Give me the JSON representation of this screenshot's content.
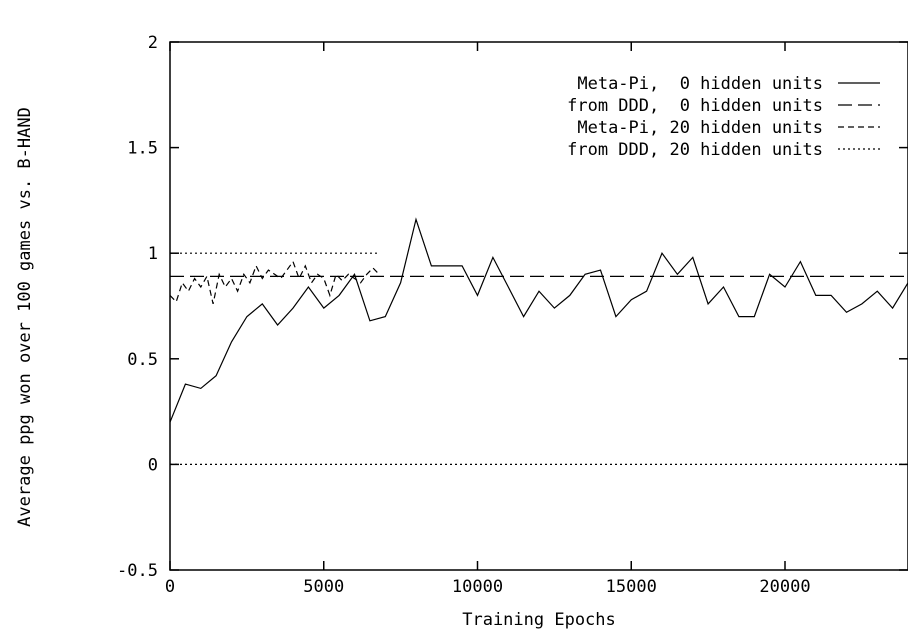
{
  "chart_data": {
    "type": "line",
    "title": "",
    "xlabel": "Training Epochs",
    "ylabel": "Average ppg won over 100 games vs. B-HAND",
    "xlim": [
      0,
      24000
    ],
    "ylim": [
      -0.5,
      2
    ],
    "xticks": [
      {
        "value": 0,
        "label": "0"
      },
      {
        "value": 5000,
        "label": "5000"
      },
      {
        "value": 10000,
        "label": "10000"
      },
      {
        "value": 15000,
        "label": "15000"
      },
      {
        "value": 20000,
        "label": "20000"
      }
    ],
    "yticks": [
      {
        "value": -0.5,
        "label": "-0.5"
      },
      {
        "value": 0,
        "label": "0"
      },
      {
        "value": 0.5,
        "label": "0.5"
      },
      {
        "value": 1,
        "label": "1"
      },
      {
        "value": 1.5,
        "label": "1.5"
      },
      {
        "value": 2,
        "label": "2"
      }
    ],
    "grid": false,
    "legend_position": "top-right",
    "series": [
      {
        "name": "Meta-Pi,  0 hidden units",
        "style": "solid",
        "x": [
          0,
          500,
          1000,
          1500,
          2000,
          2500,
          3000,
          3500,
          4000,
          4500,
          5000,
          5500,
          6000,
          6500,
          7000,
          7500,
          8000,
          8500,
          9000,
          9500,
          10000,
          10500,
          11000,
          11500,
          12000,
          12500,
          13000,
          13500,
          14000,
          14500,
          15000,
          15500,
          16000,
          16500,
          17000,
          17500,
          18000,
          18500,
          19000,
          19500,
          20000,
          20500,
          21000,
          21500,
          22000,
          22500,
          23000,
          23500,
          24000
        ],
        "y": [
          0.2,
          0.38,
          0.36,
          0.42,
          0.58,
          0.7,
          0.76,
          0.66,
          0.74,
          0.84,
          0.74,
          0.8,
          0.9,
          0.68,
          0.7,
          0.86,
          1.16,
          0.94,
          0.94,
          0.94,
          0.8,
          0.98,
          0.84,
          0.7,
          0.82,
          0.74,
          0.8,
          0.9,
          0.92,
          0.7,
          0.78,
          0.82,
          1.0,
          0.9,
          0.98,
          0.76,
          0.84,
          0.7,
          0.7,
          0.9,
          0.84,
          0.96,
          0.8,
          0.8,
          0.72,
          0.76,
          0.82,
          0.74,
          0.86
        ]
      },
      {
        "name": "from DDD,  0 hidden units",
        "style": "dashed",
        "x": [
          0,
          24000
        ],
        "y": [
          0.89,
          0.89
        ]
      },
      {
        "name": "Meta-Pi, 20 hidden units",
        "style": "short-dashed",
        "x": [
          0,
          200,
          400,
          600,
          800,
          1000,
          1200,
          1400,
          1600,
          1800,
          2000,
          2200,
          2400,
          2600,
          2800,
          3000,
          3200,
          3400,
          3600,
          3800,
          4000,
          4200,
          4400,
          4600,
          4800,
          5000,
          5200,
          5400,
          5600,
          5800,
          6000,
          6200,
          6400,
          6600,
          6800
        ],
        "y": [
          0.8,
          0.77,
          0.86,
          0.82,
          0.88,
          0.84,
          0.89,
          0.76,
          0.9,
          0.84,
          0.88,
          0.82,
          0.9,
          0.86,
          0.94,
          0.88,
          0.92,
          0.9,
          0.88,
          0.92,
          0.96,
          0.88,
          0.94,
          0.86,
          0.9,
          0.88,
          0.8,
          0.9,
          0.87,
          0.9,
          0.88,
          0.86,
          0.9,
          0.93,
          0.9
        ]
      },
      {
        "name": "from DDD, 20 hidden units",
        "style": "dotted",
        "segments": [
          {
            "x": [
              0,
              6800
            ],
            "y": [
              1.0,
              1.0
            ]
          },
          {
            "x": [
              0,
              24000
            ],
            "y": [
              0.0,
              0.0
            ]
          }
        ]
      }
    ]
  }
}
